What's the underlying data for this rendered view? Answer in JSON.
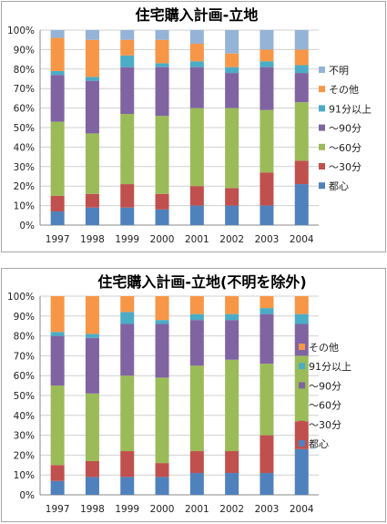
{
  "chart_data": [
    {
      "type": "bar",
      "stacked": true,
      "percent": true,
      "title": "住宅購入計画-立地",
      "categories": [
        "1997",
        "1998",
        "1999",
        "2000",
        "2001",
        "2002",
        "2003",
        "2004"
      ],
      "y_ticks": [
        "0%",
        "10%",
        "20%",
        "30%",
        "40%",
        "50%",
        "60%",
        "70%",
        "80%",
        "90%",
        "100%"
      ],
      "ylim": [
        0,
        100
      ],
      "grid": true,
      "legend_position": "right",
      "series": [
        {
          "name": "都心",
          "color": "#4f81bd",
          "values": [
            7,
            9,
            9,
            8,
            10,
            10,
            10,
            21
          ]
        },
        {
          "name": "～30分",
          "color": "#c0504d",
          "values": [
            8,
            7,
            12,
            8,
            10,
            9,
            17,
            12
          ]
        },
        {
          "name": "～60分",
          "color": "#9bbb59",
          "values": [
            38,
            31,
            36,
            40,
            40,
            41,
            32,
            30
          ]
        },
        {
          "name": "～90分",
          "color": "#8064a2",
          "values": [
            24,
            27,
            24,
            25,
            21,
            18,
            22,
            15
          ]
        },
        {
          "name": "91分以上",
          "color": "#4bacc6",
          "values": [
            2,
            2,
            6,
            2,
            3,
            3,
            3,
            4
          ]
        },
        {
          "name": "その他",
          "color": "#f79646",
          "values": [
            17,
            19,
            8,
            12,
            9,
            7,
            6,
            8
          ]
        },
        {
          "name": "不明",
          "color": "#95b3d7",
          "values": [
            4,
            5,
            5,
            5,
            7,
            12,
            10,
            10
          ]
        }
      ]
    },
    {
      "type": "bar",
      "stacked": true,
      "percent": true,
      "title": "住宅購入計画-立地(不明を除外)",
      "categories": [
        "1997",
        "1998",
        "1999",
        "2000",
        "2001",
        "2002",
        "2003",
        "2004"
      ],
      "y_ticks": [
        "0%",
        "10%",
        "20%",
        "30%",
        "40%",
        "50%",
        "60%",
        "70%",
        "80%",
        "90%",
        "100%"
      ],
      "ylim": [
        0,
        100
      ],
      "grid": true,
      "legend_position": "right",
      "series": [
        {
          "name": "都心",
          "color": "#4f81bd",
          "values": [
            7,
            9,
            9,
            9,
            11,
            11,
            11,
            23
          ]
        },
        {
          "name": "～30分",
          "color": "#c0504d",
          "values": [
            8,
            8,
            13,
            7,
            11,
            11,
            19,
            14
          ]
        },
        {
          "name": "～60分",
          "color": "#9bbb59",
          "values": [
            40,
            34,
            38,
            43,
            43,
            46,
            36,
            33
          ]
        },
        {
          "name": "～90分",
          "color": "#8064a2",
          "values": [
            25,
            28,
            26,
            27,
            23,
            20,
            25,
            16
          ]
        },
        {
          "name": "91分以上",
          "color": "#4bacc6",
          "values": [
            2,
            2,
            6,
            2,
            3,
            3,
            3,
            5
          ]
        },
        {
          "name": "その他",
          "color": "#f79646",
          "values": [
            18,
            19,
            8,
            12,
            9,
            9,
            6,
            9
          ]
        }
      ]
    }
  ]
}
